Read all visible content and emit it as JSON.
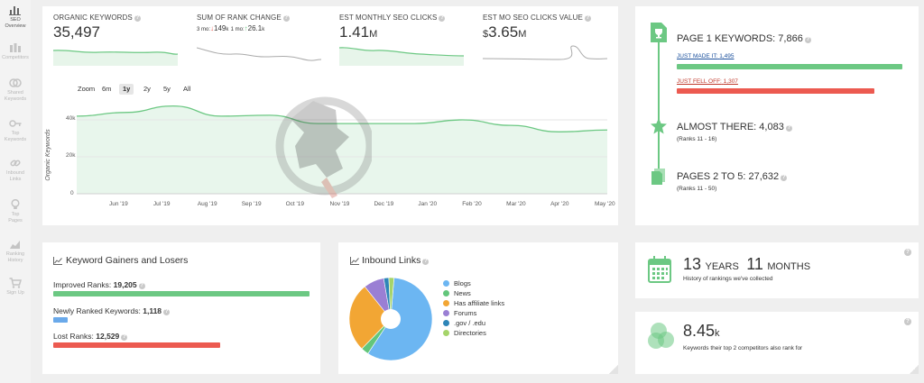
{
  "sidebar": {
    "items": [
      {
        "label1": "SEO",
        "label2": "Overview",
        "icon": "bar-chart-icon",
        "active": true
      },
      {
        "label1": "Competitors",
        "label2": "",
        "icon": "columns-icon",
        "active": false
      },
      {
        "label1": "Shared",
        "label2": "Keywords",
        "icon": "shared-icon",
        "active": false
      },
      {
        "label1": "Top",
        "label2": "Keywords",
        "icon": "key-icon",
        "active": false
      },
      {
        "label1": "Inbound",
        "label2": "Links",
        "icon": "link-icon",
        "active": false
      },
      {
        "label1": "Top",
        "label2": "Pages",
        "icon": "lightbulb-icon",
        "active": false
      },
      {
        "label1": "Ranking",
        "label2": "History",
        "icon": "history-icon",
        "active": false
      },
      {
        "label1": "Sign Up",
        "label2": "",
        "icon": "cart-icon",
        "active": false
      }
    ]
  },
  "metrics": {
    "organic": {
      "label": "ORGANIC KEYWORDS",
      "value": "35,497"
    },
    "rank_change": {
      "label": "SUM OF RANK CHANGE",
      "part1_prefix": "3 mo:",
      "part1_arrow": "↓",
      "part1_value": "149",
      "part1_unit": "k",
      "part2_prefix": "1 mo:",
      "part2_arrow": "↑",
      "part2_value": "26.1",
      "part2_unit": "k"
    },
    "clicks": {
      "label": "EST MONTHLY SEO CLICKS",
      "value": "1.41",
      "unit": "M"
    },
    "value": {
      "label": "EST MO SEO CLICKS VALUE",
      "prefix": "$",
      "value": "3.65",
      "unit": "M"
    }
  },
  "zoom": {
    "label": "Zoom",
    "options": [
      "6m",
      "1y",
      "2y",
      "5y",
      "All"
    ],
    "selected": "1y"
  },
  "chart_data": {
    "type": "area",
    "ylabel": "Organic Keywords",
    "yticks": [
      "0",
      "20k",
      "40k"
    ],
    "ylim": [
      0,
      50000
    ],
    "categories": [
      "Jun '19",
      "Jul '19",
      "Aug '19",
      "Sep '19",
      "Oct '19",
      "Nov '19",
      "Dec '19",
      "Jan '20",
      "Feb '20",
      "Mar '20",
      "Apr '20",
      "May '20"
    ],
    "series": [
      {
        "values": [
          42000,
          44000,
          47500,
          42000,
          42500,
          38000,
          38000,
          38000,
          40000,
          37000,
          33500,
          34500
        ]
      }
    ]
  },
  "gainers": {
    "title": "Keyword Gainers and Losers",
    "improved_label": "Improved Ranks:",
    "improved_value": "19,205",
    "new_label": "Newly Ranked Keywords:",
    "new_value": "1,118",
    "lost_label": "Lost Ranks:",
    "lost_value": "12,529",
    "improved_fraction": 1.0,
    "new_fraction": 0.058,
    "lost_fraction": 0.652,
    "colors": {
      "improved": "#6cc883",
      "new": "#6aa9ea",
      "lost": "#ec5a50"
    }
  },
  "inbound": {
    "title": "Inbound Links",
    "legend": [
      {
        "label": "Blogs",
        "color": "#6cb6f2",
        "value": 58
      },
      {
        "label": "News",
        "color": "#63c67b",
        "value": 3
      },
      {
        "label": "Has affiliate links",
        "color": "#f2a634",
        "value": 27
      },
      {
        "label": "Forums",
        "color": "#9a7fd4",
        "value": 8
      },
      {
        "label": ".gov / .edu",
        "color": "#2e86b8",
        "value": 2
      },
      {
        "label": "Directories",
        "color": "#a5d46a",
        "value": 2
      }
    ]
  },
  "page1": {
    "title": "PAGE 1 KEYWORDS:",
    "value": "7,866",
    "made_label": "JUST MADE IT:",
    "made_value": "1,495",
    "fell_label": "JUST FELL OFF:",
    "fell_value": "1,307",
    "almost_title": "ALMOST THERE:",
    "almost_value": "4,083",
    "almost_sub": "(Ranks 11 - 16)",
    "pages_title": "PAGES 2 TO 5:",
    "pages_value": "27,632",
    "pages_sub": "(Ranks 11 - 50)",
    "made_fraction": 1.0,
    "fell_fraction": 0.874,
    "colors": {
      "accent": "#6cc883",
      "fell": "#ec5a50"
    }
  },
  "years": {
    "years": "13",
    "years_label": "YEARS",
    "months": "11",
    "months_label": "MONTHS",
    "sub": "History of rankings we've collected"
  },
  "competitors": {
    "value": "8.45",
    "unit": "k",
    "sub": "Keywords their top 2 competitors also rank for"
  },
  "help_mark": "?"
}
